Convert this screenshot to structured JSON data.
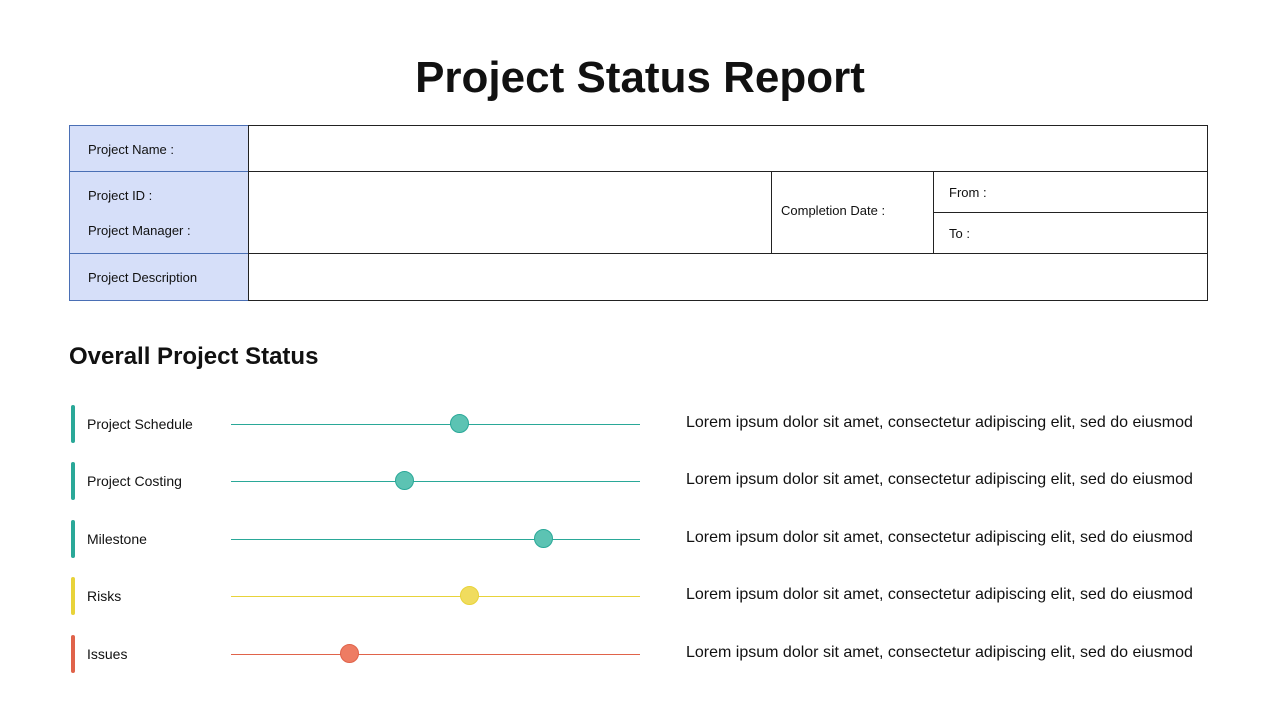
{
  "title": "Project Status Report",
  "info_table": {
    "project_name_label": "Project Name :",
    "project_name_value": "",
    "project_id_label": "Project ID :",
    "project_manager_label": "Project Manager :",
    "project_id_value": "",
    "completion_date_label": "Completion Date :",
    "from_label": "From :",
    "to_label": "To :",
    "project_description_label": "Project Description",
    "project_description_value": ""
  },
  "status_section": {
    "title": "Overall Project Status",
    "rows": [
      {
        "label": "Project Schedule",
        "level": 0.56,
        "color": "#2aa898",
        "knob_color": "#5cc3b3",
        "description": "Lorem ipsum dolor sit amet, consectetur adipiscing elit, sed do eiusmod"
      },
      {
        "label": "Project Costing",
        "level": 0.425,
        "color": "#2aa898",
        "knob_color": "#5cc3b3",
        "description": "Lorem ipsum dolor sit amet, consectetur adipiscing elit, sed do eiusmod"
      },
      {
        "label": "Milestone",
        "level": 0.765,
        "color": "#2aa898",
        "knob_color": "#5cc3b3",
        "description": "Lorem ipsum dolor sit amet, consectetur adipiscing elit, sed do eiusmod"
      },
      {
        "label": "Risks",
        "level": 0.585,
        "color": "#e8d33a",
        "knob_color": "#f0dc5e",
        "description": "Lorem ipsum dolor sit amet, consectetur adipiscing elit, sed do eiusmod"
      },
      {
        "label": "Issues",
        "level": 0.29,
        "color": "#e0634a",
        "knob_color": "#ee7c63",
        "description": "Lorem ipsum dolor sit amet, consectetur adipiscing elit, sed do eiusmod"
      }
    ]
  }
}
